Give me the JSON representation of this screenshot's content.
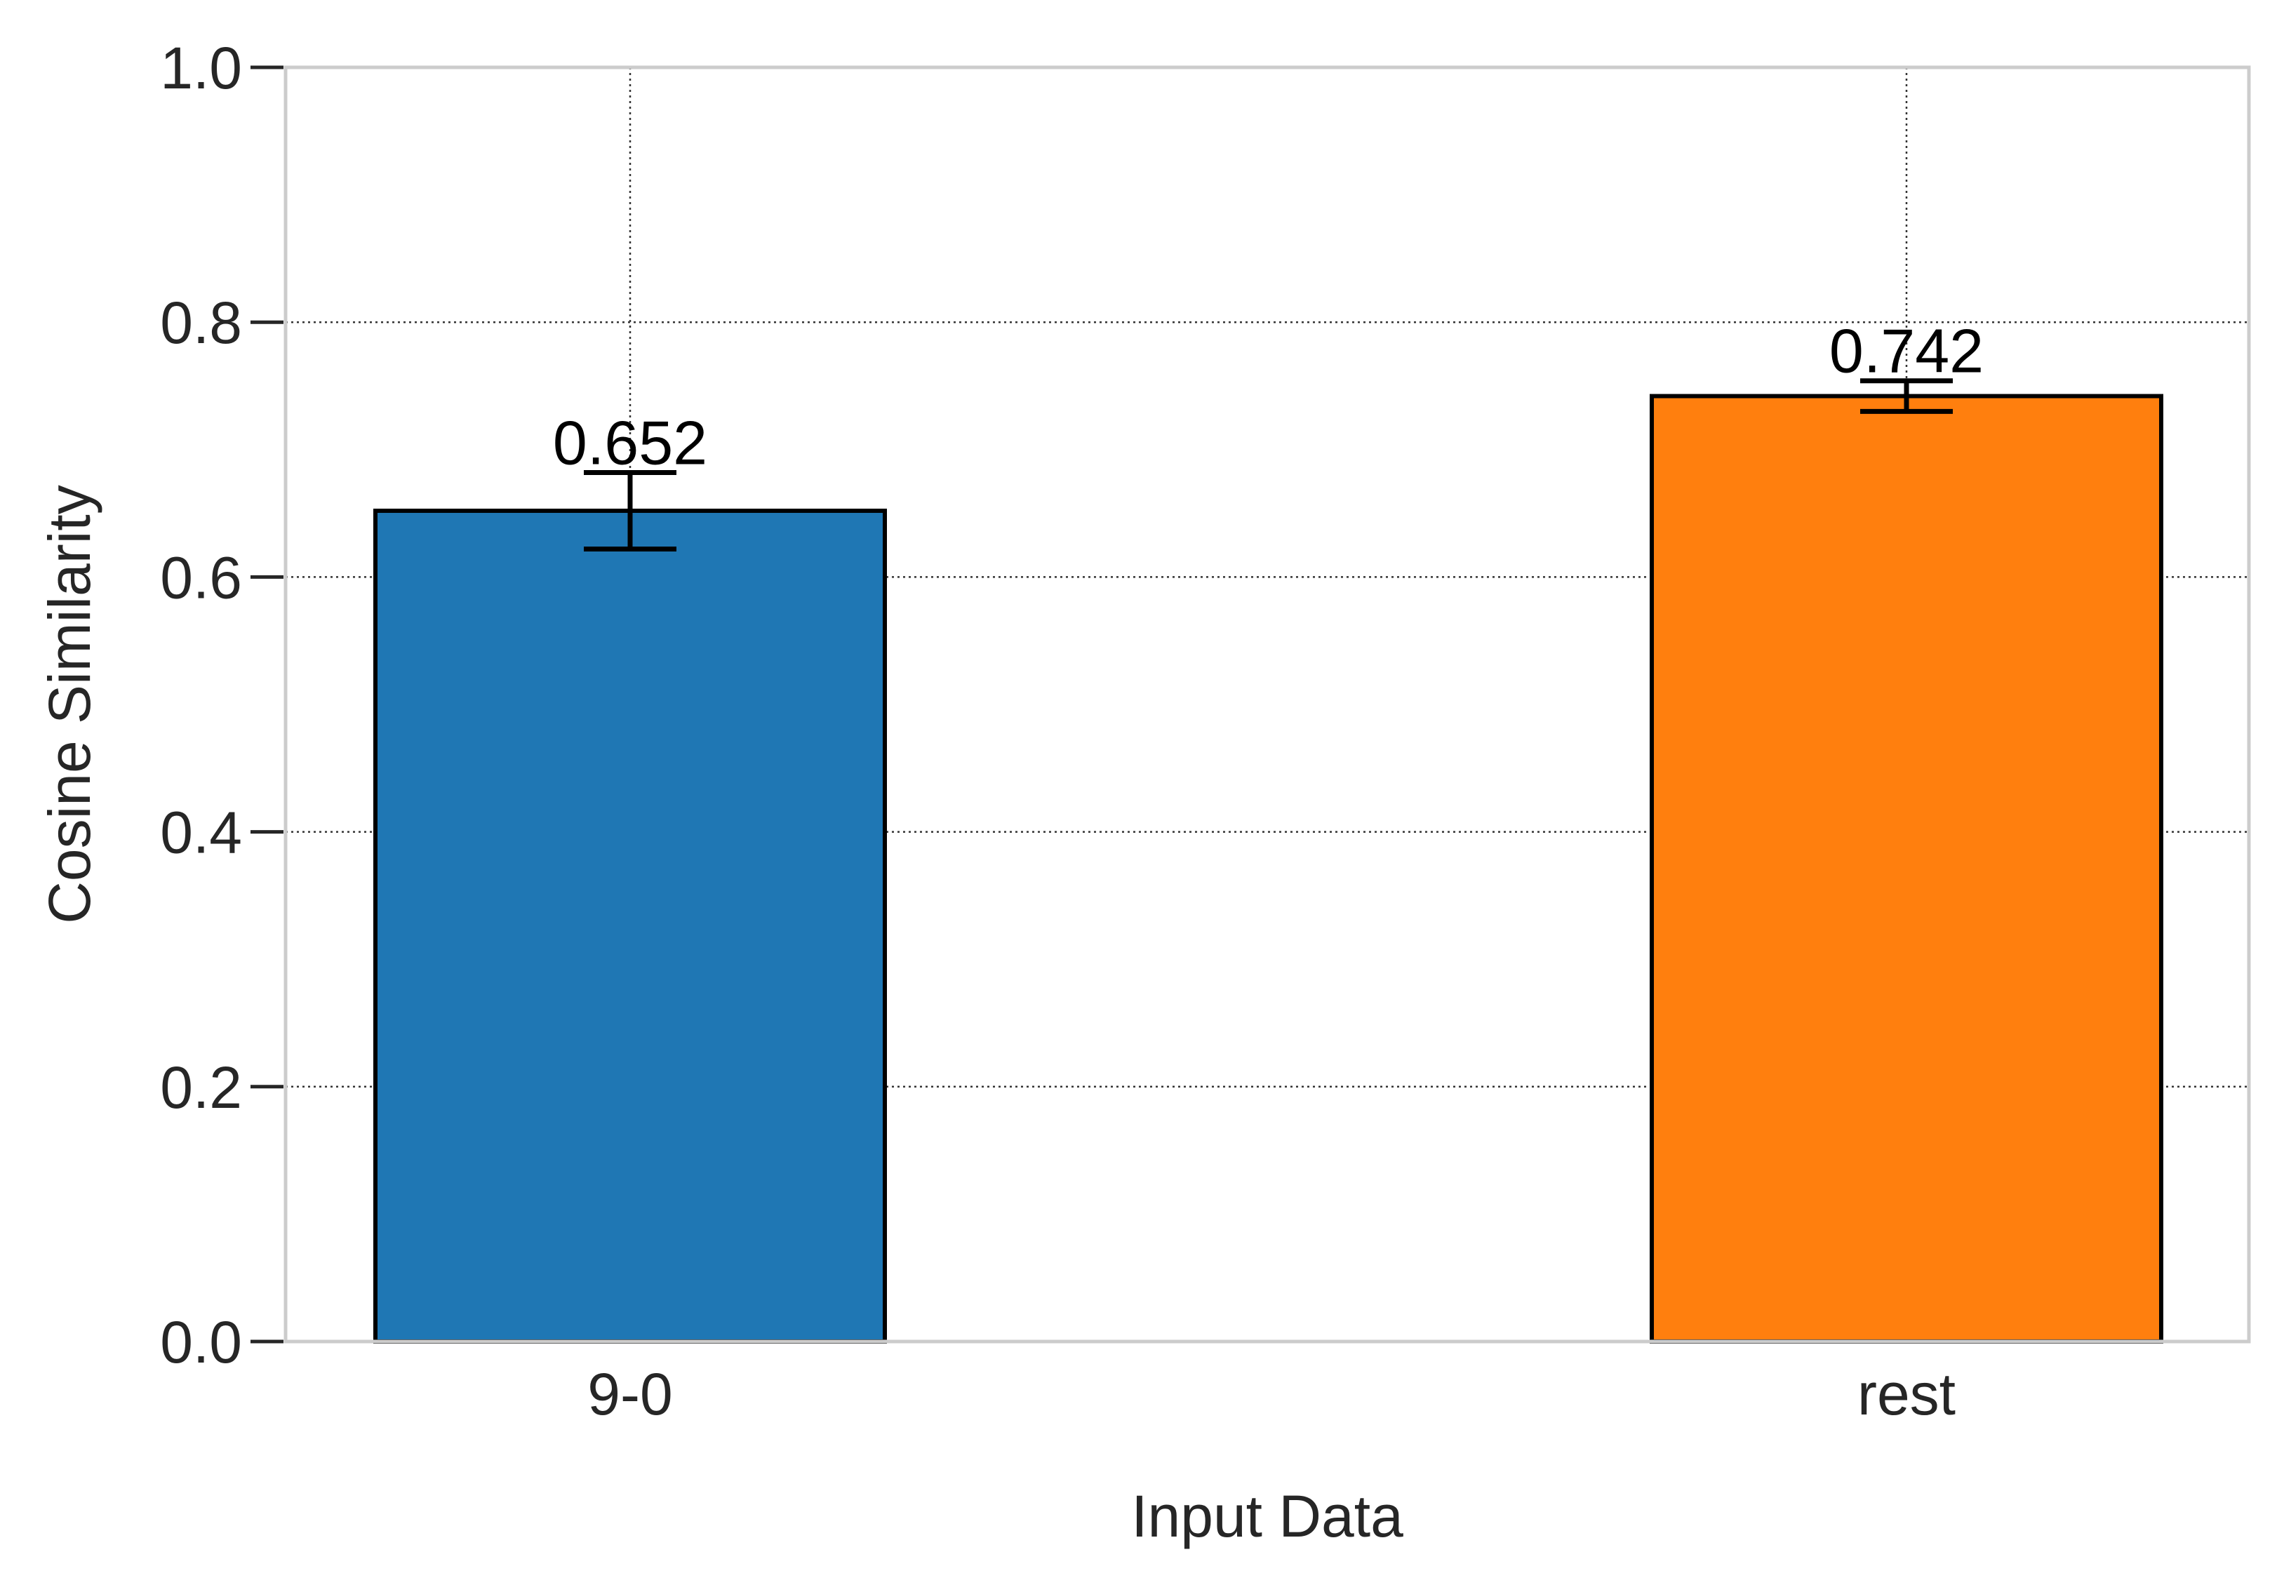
{
  "chart_data": {
    "type": "bar",
    "title": "",
    "xlabel": "Input Data",
    "ylabel": "Cosine Similarity",
    "categories": [
      "9-0",
      "rest"
    ],
    "values": [
      0.652,
      0.742
    ],
    "error": [
      0.03,
      0.012
    ],
    "data_labels": [
      "0.652",
      "0.742"
    ],
    "colors": [
      "#1f77b4",
      "#ff7f0e"
    ],
    "ylim": [
      0,
      1.0
    ],
    "yticks": [
      0.0,
      0.2,
      0.4,
      0.6,
      0.8,
      1.0
    ],
    "ytick_labels": [
      "0.0",
      "0.2",
      "0.4",
      "0.6",
      "0.8",
      "1.0"
    ],
    "grid": true,
    "legend": false
  }
}
